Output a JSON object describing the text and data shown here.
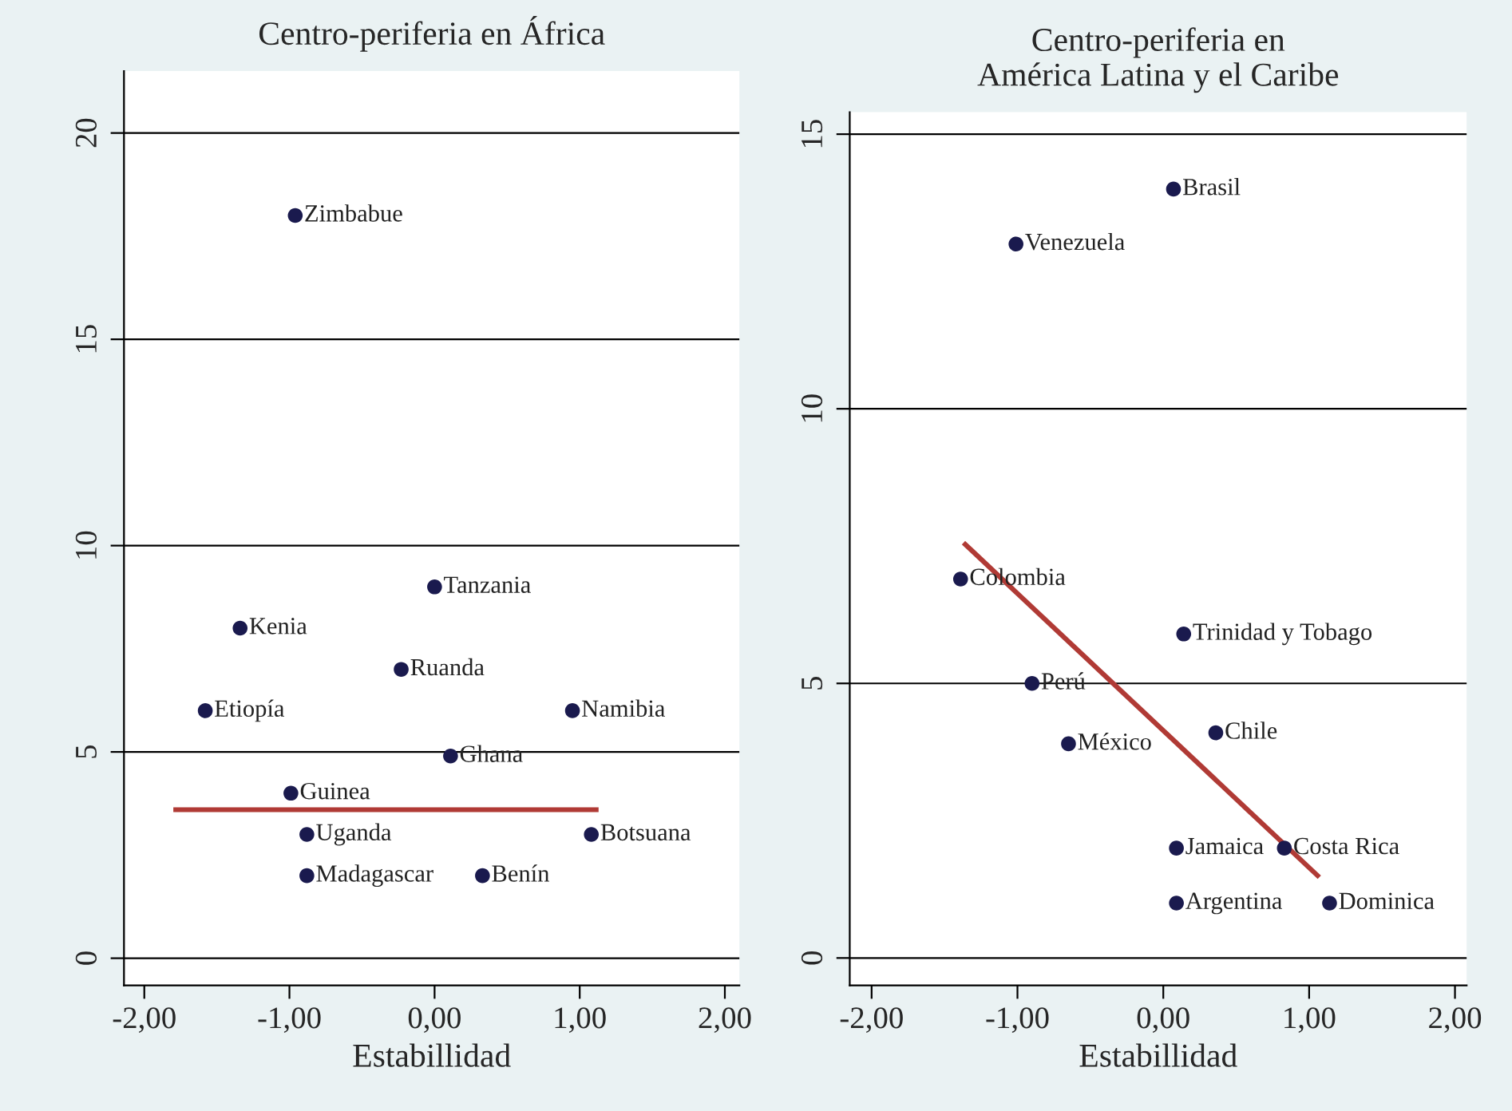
{
  "chart_data": [
    {
      "type": "scatter",
      "title": "Centro-periferia en África",
      "xlabel": "Estabillidad",
      "xlim": [
        -2.14,
        2.1
      ],
      "ylim": [
        -0.66,
        21.5
      ],
      "xticks": [
        {
          "value": -2,
          "label": "-2,00"
        },
        {
          "value": -1,
          "label": "-1,00"
        },
        {
          "value": 0,
          "label": "0,00"
        },
        {
          "value": 1,
          "label": "1,00"
        },
        {
          "value": 2,
          "label": "2,00"
        }
      ],
      "yticks": [
        0,
        5,
        10,
        15,
        20
      ],
      "grid": "y",
      "series": [
        {
          "marker": "circle",
          "color": "#1a1a4e",
          "x": [
            -0.96,
            0.0,
            -1.34,
            -0.23,
            -1.58,
            0.95,
            0.11,
            -0.99,
            -0.88,
            1.08,
            -0.88,
            0.33
          ],
          "values": [
            18,
            9,
            8,
            7,
            6,
            6,
            4.9,
            4,
            3,
            3,
            2,
            2
          ],
          "value_labels": [
            "Zimbabue",
            "Tanzania",
            "Kenia",
            "Ruanda",
            "Etiopía",
            "Namibia",
            "Ghana",
            "Guinea",
            "Uganda",
            "Botsuana",
            "Madagascar",
            "Benín"
          ]
        },
        {
          "type": "line",
          "color": "#b03a35",
          "x": [
            -1.8,
            1.13
          ],
          "values": [
            3.6,
            3.6
          ]
        }
      ]
    },
    {
      "type": "scatter",
      "title": "Centro-periferia en\nAmérica Latina y el Caribe",
      "xlabel": "Estabillidad",
      "xlim": [
        -2.15,
        2.08
      ],
      "ylim": [
        -0.5,
        15.4
      ],
      "xticks": [
        {
          "value": -2,
          "label": "-2,00"
        },
        {
          "value": -1,
          "label": "-1,00"
        },
        {
          "value": 0,
          "label": "0,00"
        },
        {
          "value": 1,
          "label": "1,00"
        },
        {
          "value": 2,
          "label": "2,00"
        }
      ],
      "yticks": [
        0,
        5,
        10,
        15
      ],
      "grid": "y",
      "series": [
        {
          "marker": "circle",
          "color": "#1a1a4e",
          "x": [
            0.07,
            -1.01,
            -1.39,
            0.14,
            -0.9,
            0.36,
            -0.65,
            0.09,
            0.83,
            0.09,
            1.14
          ],
          "values": [
            14,
            13,
            6.9,
            5.9,
            5,
            4.1,
            3.9,
            2,
            2,
            1,
            1
          ],
          "value_labels": [
            "Brasil",
            "Venezuela",
            "Colombia",
            "Trinidad y Tobago",
            "Perú",
            "Chile",
            "México",
            "Jamaica",
            "Costa Rica",
            "Argentina",
            "Dominica"
          ]
        },
        {
          "type": "line",
          "color": "#b03a35",
          "x": [
            -1.37,
            1.07
          ],
          "values": [
            7.56,
            1.47
          ]
        }
      ]
    }
  ]
}
